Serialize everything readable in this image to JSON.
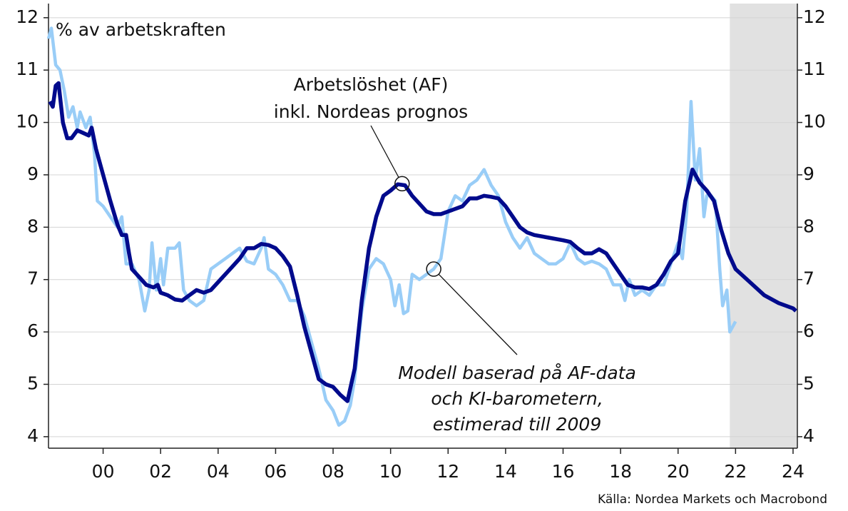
{
  "chart_data": {
    "type": "line",
    "y_axis_label": "% av arbetskraften",
    "source": "Källa: Nordea Markets och Macrobond",
    "xlim": [
      1998.1,
      2024.15
    ],
    "ylim": [
      3.78,
      12.27
    ],
    "y2lim": [
      3.78,
      12.27
    ],
    "xticks": [
      {
        "value": 2000,
        "label": "00"
      },
      {
        "value": 2002,
        "label": "02"
      },
      {
        "value": 2004,
        "label": "04"
      },
      {
        "value": 2006,
        "label": "06"
      },
      {
        "value": 2008,
        "label": "08"
      },
      {
        "value": 2010,
        "label": "10"
      },
      {
        "value": 2012,
        "label": "12"
      },
      {
        "value": 2014,
        "label": "14"
      },
      {
        "value": 2016,
        "label": "16"
      },
      {
        "value": 2018,
        "label": "18"
      },
      {
        "value": 2020,
        "label": "20"
      },
      {
        "value": 2022,
        "label": "22"
      },
      {
        "value": 2024,
        "label": "24"
      }
    ],
    "yticks": [
      4,
      5,
      6,
      7,
      8,
      9,
      10,
      11,
      12
    ],
    "y2ticks": [
      4,
      5,
      6,
      7,
      8,
      9,
      10,
      11,
      12
    ],
    "grid": true,
    "forecast_span": [
      2021.8,
      2024.15
    ],
    "series": [
      {
        "color": "#99cdf7",
        "x": [
          1998.1,
          1998.2,
          1998.35,
          1998.5,
          1998.65,
          1998.8,
          1998.95,
          1999.1,
          1999.2,
          1999.4,
          1999.55,
          1999.7,
          1999.8,
          2000.0,
          2000.25,
          2000.5,
          2000.65,
          2000.8,
          2001.0,
          2001.25,
          2001.45,
          2001.6,
          2001.7,
          2001.85,
          2002.0,
          2002.1,
          2002.25,
          2002.5,
          2002.65,
          2002.8,
          2003.0,
          2003.25,
          2003.5,
          2003.75,
          2004.0,
          2004.25,
          2004.5,
          2004.75,
          2005.0,
          2005.25,
          2005.5,
          2005.6,
          2005.75,
          2006.0,
          2006.25,
          2006.5,
          2006.75,
          2007.0,
          2007.25,
          2007.5,
          2007.75,
          2008.0,
          2008.2,
          2008.4,
          2008.6,
          2008.75,
          2009.0,
          2009.25,
          2009.5,
          2009.75,
          2010.0,
          2010.15,
          2010.3,
          2010.45,
          2010.6,
          2010.75,
          2011.0,
          2011.25,
          2011.5,
          2011.75,
          2012.0,
          2012.25,
          2012.5,
          2012.75,
          2013.0,
          2013.25,
          2013.5,
          2013.75,
          2014.0,
          2014.25,
          2014.5,
          2014.75,
          2015.0,
          2015.25,
          2015.5,
          2015.75,
          2016.0,
          2016.25,
          2016.5,
          2016.75,
          2017.0,
          2017.25,
          2017.5,
          2017.75,
          2018.0,
          2018.15,
          2018.3,
          2018.5,
          2018.75,
          2019.0,
          2019.25,
          2019.5,
          2019.75,
          2020.0,
          2020.15,
          2020.3,
          2020.45,
          2020.6,
          2020.75,
          2020.9,
          2021.0,
          2021.15,
          2021.3,
          2021.45,
          2021.55,
          2021.7,
          2021.8,
          2022.0
        ],
        "values": [
          11.6,
          11.8,
          11.1,
          11.0,
          10.6,
          10.1,
          10.3,
          9.9,
          10.2,
          9.9,
          10.1,
          9.4,
          8.5,
          8.4,
          8.2,
          8.0,
          8.2,
          7.3,
          7.3,
          7.0,
          6.4,
          6.8,
          7.7,
          6.8,
          7.4,
          6.9,
          7.6,
          7.6,
          7.7,
          6.8,
          6.6,
          6.5,
          6.6,
          7.2,
          7.3,
          7.4,
          7.5,
          7.6,
          7.35,
          7.3,
          7.6,
          7.8,
          7.2,
          7.1,
          6.9,
          6.6,
          6.6,
          6.3,
          5.8,
          5.3,
          4.7,
          4.5,
          4.22,
          4.3,
          4.6,
          5.1,
          6.4,
          7.2,
          7.4,
          7.3,
          7.0,
          6.5,
          6.9,
          6.35,
          6.4,
          7.1,
          7.0,
          7.1,
          7.2,
          7.4,
          8.3,
          8.6,
          8.5,
          8.8,
          8.9,
          9.1,
          8.8,
          8.6,
          8.1,
          7.8,
          7.6,
          7.8,
          7.5,
          7.4,
          7.3,
          7.3,
          7.4,
          7.7,
          7.4,
          7.3,
          7.35,
          7.3,
          7.2,
          6.9,
          6.9,
          6.6,
          7.0,
          6.7,
          6.8,
          6.7,
          6.9,
          6.9,
          7.3,
          7.7,
          7.4,
          8.3,
          10.4,
          8.9,
          9.5,
          8.2,
          8.6,
          8.6,
          8.5,
          7.2,
          6.5,
          6.8,
          6.0,
          6.2
        ]
      },
      {
        "color": "#000a8c",
        "x": [
          1998.15,
          1998.25,
          1998.35,
          1998.45,
          1998.6,
          1998.75,
          1998.9,
          1999.1,
          1999.3,
          1999.5,
          1999.6,
          1999.75,
          2000.0,
          2000.25,
          2000.5,
          2000.65,
          2000.8,
          2000.9,
          2001.0,
          2001.25,
          2001.5,
          2001.75,
          2001.9,
          2002.0,
          2002.25,
          2002.5,
          2002.75,
          2003.0,
          2003.25,
          2003.5,
          2003.75,
          2004.0,
          2004.25,
          2004.5,
          2004.75,
          2005.0,
          2005.25,
          2005.5,
          2005.75,
          2006.0,
          2006.25,
          2006.5,
          2006.75,
          2007.0,
          2007.25,
          2007.5,
          2007.75,
          2008.0,
          2008.25,
          2008.5,
          2008.75,
          2009.0,
          2009.25,
          2009.5,
          2009.75,
          2010.0,
          2010.25,
          2010.5,
          2010.75,
          2011.0,
          2011.25,
          2011.5,
          2011.75,
          2012.0,
          2012.25,
          2012.5,
          2012.75,
          2013.0,
          2013.25,
          2013.5,
          2013.75,
          2014.0,
          2014.25,
          2014.5,
          2014.75,
          2015.0,
          2015.5,
          2016.0,
          2016.25,
          2016.5,
          2016.75,
          2017.0,
          2017.25,
          2017.5,
          2017.75,
          2018.0,
          2018.25,
          2018.5,
          2018.75,
          2019.0,
          2019.25,
          2019.5,
          2019.75,
          2020.0,
          2020.25,
          2020.5,
          2020.75,
          2021.0,
          2021.25,
          2021.5,
          2021.75,
          2022.0,
          2022.5,
          2023.0,
          2023.5,
          2024.0,
          2024.1
        ],
        "values": [
          10.4,
          10.3,
          10.7,
          10.75,
          10.0,
          9.7,
          9.7,
          9.85,
          9.8,
          9.75,
          9.9,
          9.5,
          9.0,
          8.5,
          8.05,
          7.85,
          7.85,
          7.5,
          7.2,
          7.05,
          6.9,
          6.85,
          6.9,
          6.75,
          6.7,
          6.62,
          6.6,
          6.7,
          6.8,
          6.75,
          6.8,
          6.95,
          7.1,
          7.25,
          7.4,
          7.6,
          7.6,
          7.68,
          7.66,
          7.6,
          7.45,
          7.25,
          6.7,
          6.1,
          5.6,
          5.1,
          5.0,
          4.95,
          4.8,
          4.68,
          5.3,
          6.6,
          7.6,
          8.2,
          8.6,
          8.7,
          8.82,
          8.8,
          8.6,
          8.45,
          8.3,
          8.25,
          8.25,
          8.3,
          8.35,
          8.4,
          8.55,
          8.55,
          8.6,
          8.58,
          8.55,
          8.4,
          8.2,
          8.0,
          7.9,
          7.85,
          7.8,
          7.75,
          7.72,
          7.6,
          7.5,
          7.5,
          7.58,
          7.5,
          7.3,
          7.1,
          6.9,
          6.85,
          6.85,
          6.82,
          6.9,
          7.1,
          7.35,
          7.5,
          8.5,
          9.1,
          8.85,
          8.7,
          8.5,
          7.95,
          7.5,
          7.2,
          6.95,
          6.7,
          6.55,
          6.45,
          6.4
        ]
      }
    ],
    "annotations": [
      {
        "lines": [
          "Arbetslöshet (AF)",
          "inkl. Nordeas prognos"
        ],
        "point": [
          2010.4,
          8.83
        ]
      },
      {
        "lines": [
          "Modell baserad på AF-data",
          "och KI-barometern,",
          "estimerad till 2009"
        ],
        "point": [
          2011.5,
          7.2
        ]
      }
    ]
  }
}
